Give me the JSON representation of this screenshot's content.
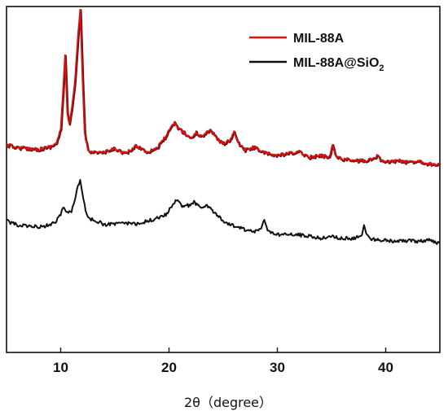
{
  "chart_data": {
    "type": "line",
    "title": "",
    "xlabel": "2θ（degree）",
    "ylabel": "",
    "xlim": [
      5,
      45
    ],
    "ylim": [
      0,
      100
    ],
    "x_ticks": [
      "10",
      "20",
      "30",
      "40"
    ],
    "grid": false,
    "legend_position": "top-right",
    "series": [
      {
        "name": "MIL-88A",
        "sub": "",
        "color": "#e01010",
        "shadow_color": "#5a1010",
        "x": [
          5.0,
          6.0,
          7.0,
          8.0,
          9.0,
          9.6,
          10.0,
          10.2,
          10.4,
          10.6,
          10.8,
          11.0,
          11.3,
          11.6,
          11.8,
          12.0,
          12.2,
          12.5,
          13.0,
          14.0,
          15.0,
          16.0,
          17.0,
          18.0,
          19.0,
          19.8,
          20.5,
          20.8,
          21.2,
          22.0,
          22.5,
          23.0,
          23.8,
          24.5,
          25.0,
          25.5,
          26.0,
          26.5,
          27.0,
          28.0,
          28.5,
          29.0,
          30.0,
          31.0,
          32.0,
          33.0,
          34.0,
          34.8,
          35.1,
          35.4,
          36.0,
          37.0,
          38.0,
          39.0,
          39.2,
          39.5,
          40.0,
          41.0,
          42.0,
          43.0,
          44.0,
          45.0
        ],
        "y": [
          60.0,
          59.3,
          59.0,
          58.8,
          59.5,
          60.5,
          64.5,
          75.0,
          86.0,
          69.0,
          66.0,
          70.0,
          78.0,
          92.0,
          99.0,
          80.0,
          63.5,
          58.5,
          58.0,
          57.8,
          59.0,
          57.5,
          59.8,
          58.0,
          59.5,
          63.0,
          66.5,
          65.0,
          64.0,
          62.0,
          63.5,
          62.5,
          64.5,
          61.5,
          60.5,
          61.0,
          63.5,
          60.0,
          58.5,
          59.5,
          58.0,
          57.5,
          57.0,
          57.5,
          58.0,
          56.5,
          57.0,
          56.5,
          60.5,
          56.5,
          56.0,
          55.5,
          55.5,
          56.0,
          57.5,
          55.5,
          55.0,
          55.5,
          55.0,
          55.5,
          54.5,
          54.5
        ]
      },
      {
        "name": "MIL-88A@SiO",
        "sub": "2",
        "color": "#111111",
        "shadow_color": "#111111",
        "x": [
          5.0,
          6.0,
          7.0,
          8.0,
          9.0,
          9.6,
          10.0,
          10.3,
          10.6,
          11.0,
          11.3,
          11.6,
          11.8,
          12.0,
          12.3,
          12.6,
          13.0,
          14.0,
          15.0,
          16.0,
          17.0,
          18.0,
          19.0,
          19.8,
          20.5,
          20.8,
          21.2,
          21.8,
          22.3,
          22.8,
          23.5,
          24.0,
          24.5,
          25.0,
          26.0,
          27.0,
          28.0,
          28.5,
          28.8,
          29.1,
          29.5,
          30.0,
          31.0,
          32.0,
          33.0,
          34.0,
          35.0,
          36.0,
          37.0,
          37.8,
          38.0,
          38.3,
          38.6,
          39.0,
          40.0,
          41.0,
          42.0,
          43.0,
          44.0,
          45.0
        ],
        "y": [
          38.0,
          36.8,
          36.5,
          36.3,
          36.8,
          38.0,
          40.0,
          42.0,
          40.5,
          41.0,
          44.0,
          48.5,
          49.5,
          46.0,
          41.0,
          38.5,
          38.5,
          37.0,
          37.0,
          37.5,
          37.0,
          38.0,
          38.8,
          40.0,
          43.5,
          44.0,
          42.5,
          42.5,
          43.5,
          42.0,
          42.5,
          41.0,
          39.5,
          38.0,
          36.5,
          35.5,
          35.0,
          35.8,
          38.5,
          35.0,
          34.5,
          34.0,
          34.0,
          34.0,
          33.5,
          33.0,
          33.5,
          33.0,
          33.0,
          33.5,
          36.5,
          34.0,
          33.0,
          32.5,
          32.5,
          32.0,
          32.3,
          32.0,
          32.5,
          31.5
        ]
      }
    ]
  }
}
